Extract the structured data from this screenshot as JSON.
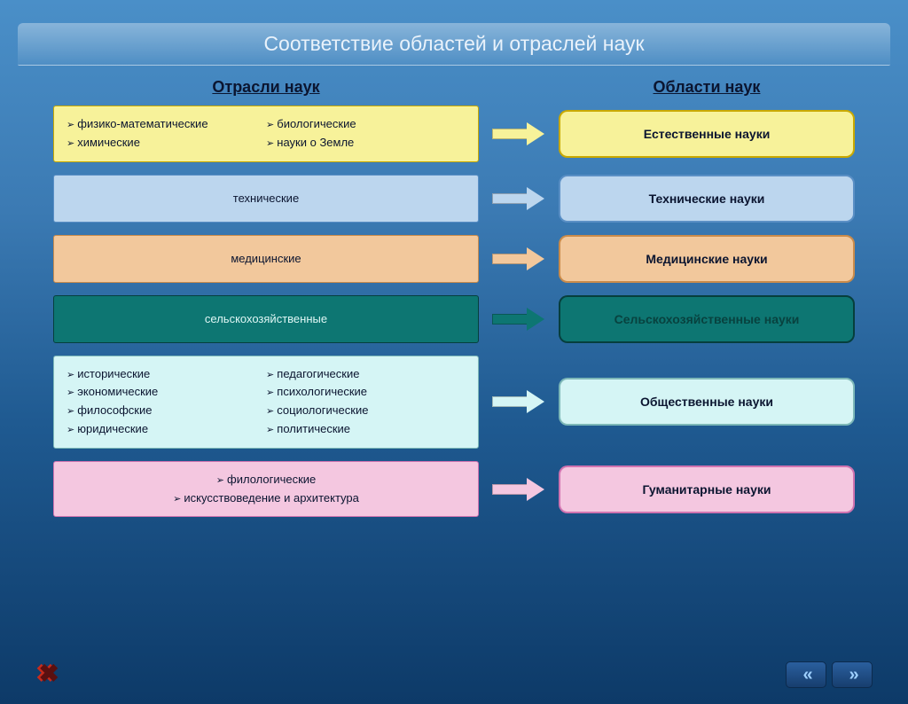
{
  "title": "Соответствие областей и отраслей наук",
  "headers": {
    "left": "Отрасли наук",
    "right": "Области наук"
  },
  "colors": {
    "yellow": {
      "fill": "#f7f29a",
      "border": "#c9a900"
    },
    "lblue": {
      "fill": "#bcd6ee",
      "border": "#5a8fc5"
    },
    "tan": {
      "fill": "#f2c89c",
      "border": "#c98b4b"
    },
    "teal": {
      "fill": "#0d7672",
      "border": "#063f3d"
    },
    "cyan": {
      "fill": "#d5f5f5",
      "border": "#7db8b8"
    },
    "pink": {
      "fill": "#f4c7e0",
      "border": "#d073b0"
    }
  },
  "rows": [
    {
      "color": "yellow",
      "mode": "bullets",
      "bullets_left": [
        "физико-математические",
        "химические"
      ],
      "bullets_right": [
        "биологические",
        "науки о Земле"
      ],
      "area": "Естественные науки"
    },
    {
      "color": "lblue",
      "mode": "center",
      "center_text": "технические",
      "area": "Технические науки"
    },
    {
      "color": "tan",
      "mode": "center",
      "center_text": "медицинские",
      "area": "Медицинские науки"
    },
    {
      "color": "teal",
      "mode": "center",
      "center_text": "сельскохозяйственные",
      "area": "Сельскохозяйственные науки",
      "light_text": true
    },
    {
      "color": "cyan",
      "mode": "bullets",
      "bullets_left": [
        "исторические",
        "экономические",
        "философские",
        "юридические"
      ],
      "bullets_right": [
        "педагогические",
        "психологические",
        "социологические",
        "политические"
      ],
      "area": "Общественные науки"
    },
    {
      "color": "pink",
      "mode": "bullets",
      "bullets_left": [
        "филологические",
        "искусствоведение и архитектура"
      ],
      "bullets_right": [],
      "area": "Гуманитарные науки",
      "single_col": true
    }
  ]
}
